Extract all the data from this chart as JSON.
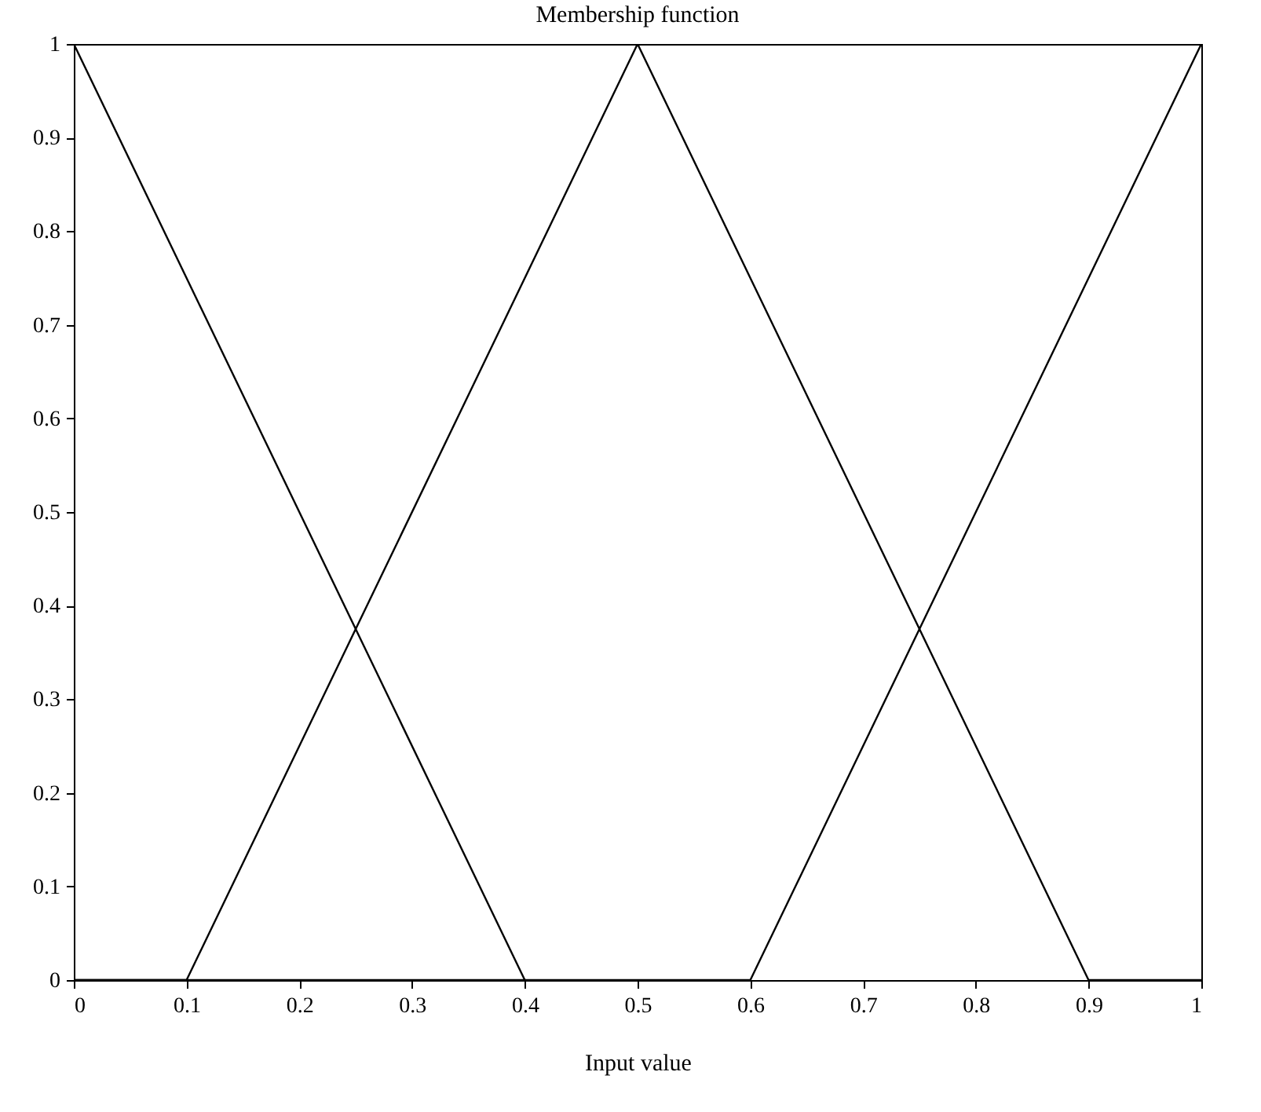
{
  "chart_data": {
    "type": "line",
    "title": "Membership function",
    "xlabel": "Input value",
    "series": [
      {
        "color": "#000000",
        "x": [
          0,
          0.4
        ],
        "values": [
          1,
          0
        ]
      },
      {
        "color": "#000000",
        "x": [
          0,
          0.1,
          0.5,
          0.9,
          1
        ],
        "values": [
          0,
          0,
          1,
          0,
          0
        ]
      },
      {
        "color": "#000000",
        "x": [
          0,
          0.6,
          1
        ],
        "values": [
          0,
          0,
          1
        ]
      }
    ],
    "xlim": [
      0,
      1
    ],
    "xticks": [
      0,
      0.1,
      0.2,
      0.3,
      0.4,
      0.5,
      0.6,
      0.7,
      0.8,
      0.9,
      1
    ],
    "ylim": [
      0,
      1
    ],
    "yticks": [
      0,
      0.1,
      0.2,
      0.3,
      0.4,
      0.5,
      0.6,
      0.7,
      0.8,
      0.9,
      1
    ],
    "grid": false,
    "marker": "none",
    "line_style": "solid"
  }
}
